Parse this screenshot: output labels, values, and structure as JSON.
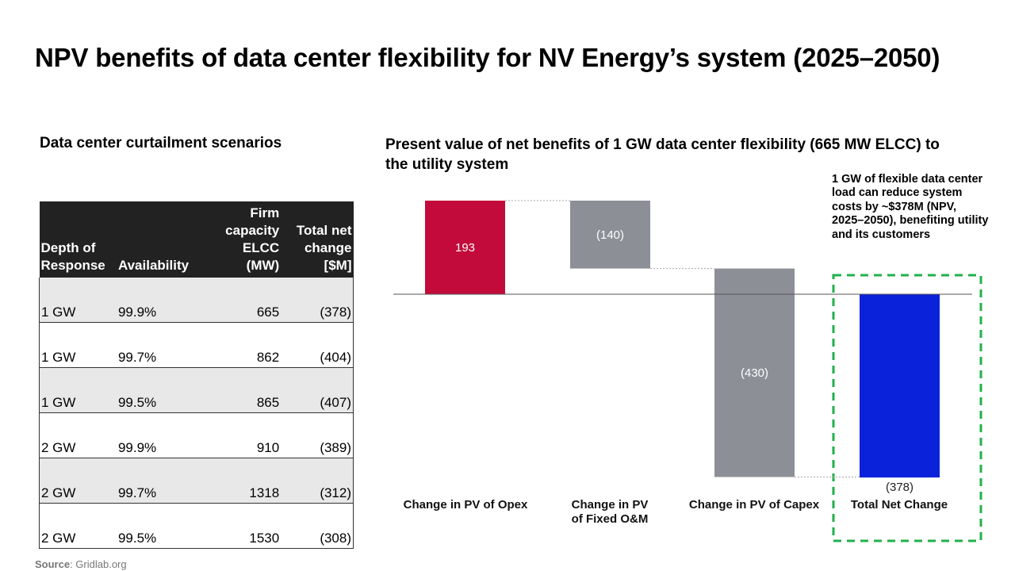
{
  "title": "NPV benefits of data center flexibility for NV Energy’s system (2025–2050)",
  "left_heading": "Data center curtailment scenarios",
  "table": {
    "headers": [
      "Depth of Response",
      "Availability",
      "Firm capacity ELCC (MW)",
      "Total net change [$M]"
    ],
    "rows": [
      [
        "1 GW",
        "99.9%",
        "665",
        "(378)"
      ],
      [
        "1 GW",
        "99.7%",
        "862",
        "(404)"
      ],
      [
        "1 GW",
        "99.5%",
        "865",
        "(407)"
      ],
      [
        "2 GW",
        "99.9%",
        "910",
        "(389)"
      ],
      [
        "2 GW",
        "99.7%",
        "1318",
        "(312)"
      ],
      [
        "2 GW",
        "99.5%",
        "1530",
        "(308)"
      ]
    ]
  },
  "source": {
    "label": "Source",
    "text": ": Gridlab.org"
  },
  "chart_data": {
    "type": "bar",
    "subtype": "waterfall",
    "title": "Present value of net benefits of 1 GW data center flexibility (665 MW ELCC) to the utility system",
    "categories": [
      "Change in PV of Opex",
      "Change in PV of Fixed O&M",
      "Change in PV of Capex",
      "Total Net Change"
    ],
    "category_lines": [
      [
        "Change in PV of Opex"
      ],
      [
        "Change in PV",
        "of Fixed O&M"
      ],
      [
        "Change in PV of Capex"
      ],
      [
        "Total Net Change"
      ]
    ],
    "values": [
      193,
      -140,
      -430,
      -378
    ],
    "labels": [
      "193",
      "(140)",
      "(430)",
      "(378)"
    ],
    "is_total": [
      false,
      false,
      false,
      true
    ],
    "colors": [
      "#c20b3a",
      "#8c9096",
      "#8c9096",
      "#0a22d9"
    ],
    "units": "$M",
    "annotation": "1 GW of flexible data center load can reduce system costs by ~$378M (NPV, 2025–2050), benefiting utility and its customers",
    "highlight_color": "#22b04b"
  }
}
